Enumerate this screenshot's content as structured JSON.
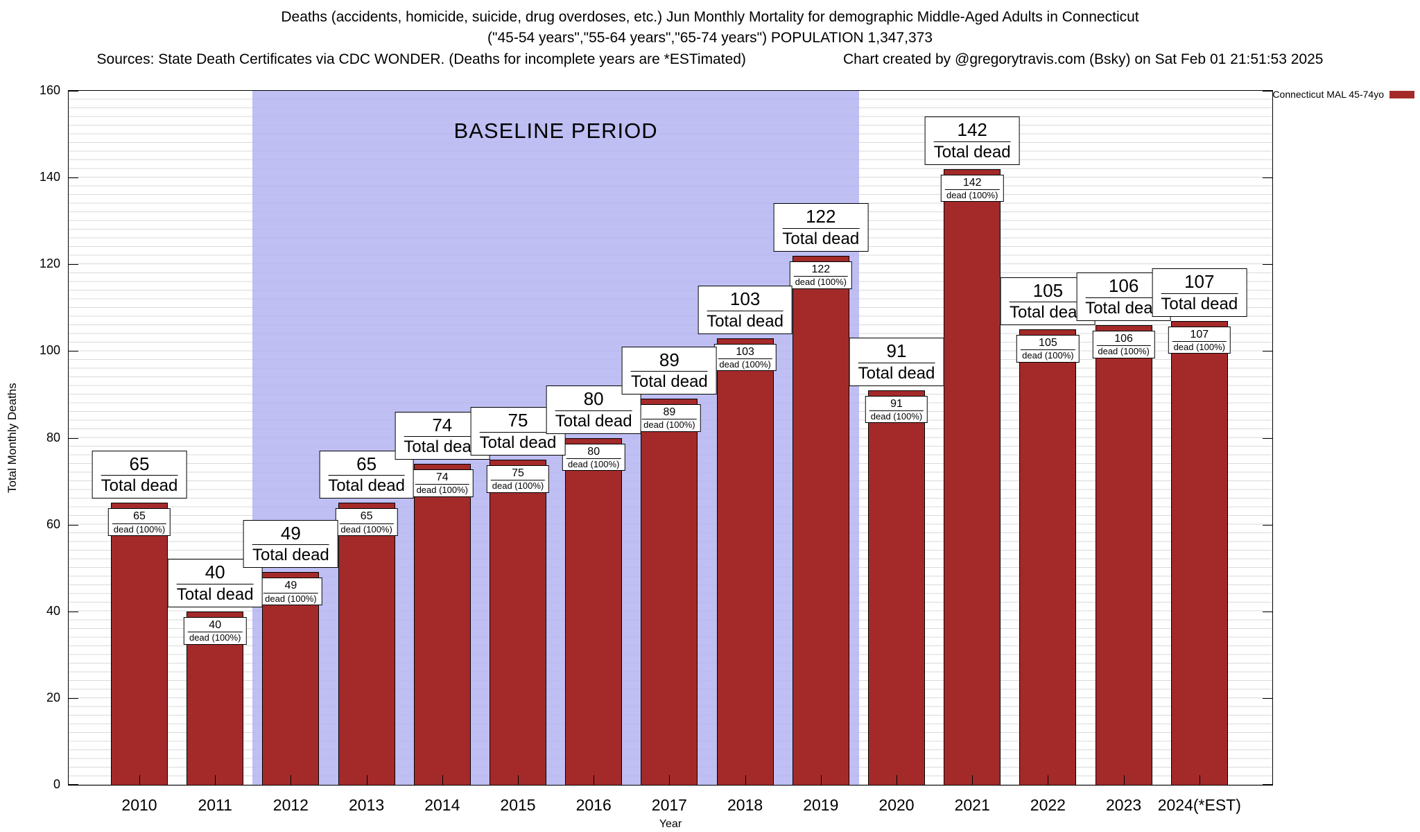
{
  "header": {
    "title_line1": "Deaths (accidents, homicide, suicide, drug overdoses, etc.) Jun Monthly Mortality for demographic Middle-Aged Adults in Connecticut",
    "title_line2": "(\"45-54 years\",\"55-64 years\",\"65-74 years\") POPULATION 1,347,373",
    "sources": "Sources: State Death Certificates via CDC WONDER. (Deaths for incomplete years are *ESTimated)",
    "credit": "Chart created by @gregorytravis.com (Bsky) on Sat Feb 01 21:51:53 2025"
  },
  "legend": {
    "label": "Connecticut MAL 45-74yo",
    "color": "#a42a2a"
  },
  "chart_data": {
    "type": "bar",
    "title": "Jun Monthly Mortality for demographic Middle-Aged Adults in Connecticut",
    "xlabel": "Year",
    "ylabel": "Total Monthly Deaths",
    "ylim": [
      0,
      160
    ],
    "ytick_step": 20,
    "grid": true,
    "categories": [
      "2010",
      "2011",
      "2012",
      "2013",
      "2014",
      "2015",
      "2016",
      "2017",
      "2018",
      "2019",
      "2020",
      "2021",
      "2022",
      "2023",
      "2024(*EST)"
    ],
    "values": [
      65,
      40,
      49,
      65,
      74,
      75,
      80,
      89,
      103,
      122,
      91,
      142,
      105,
      106,
      107
    ],
    "bar_label_suffix": "Total dead",
    "inner_label_suffix": "dead (100%)",
    "bar_color": "#a42a2a",
    "baseline": {
      "label": "BASELINE PERIOD",
      "from_category": "2012",
      "to_category": "2019",
      "color": "#b4b4f2"
    }
  }
}
